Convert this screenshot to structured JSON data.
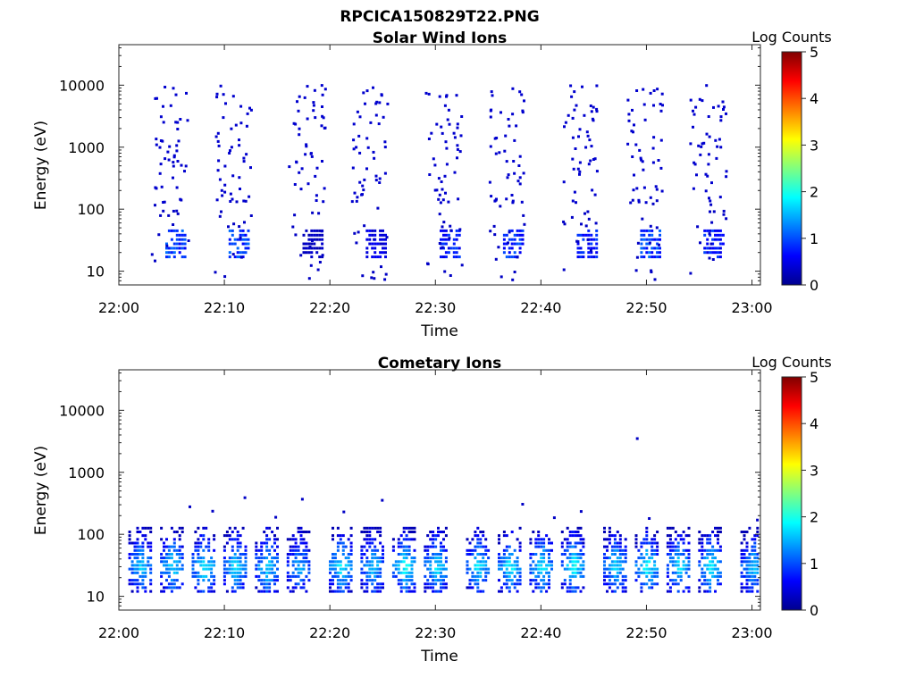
{
  "figure": {
    "title": "RPCICA150829T22.PNG"
  },
  "chart_data": [
    {
      "type": "heatmap",
      "title": "Solar Wind Ions",
      "xlabel": "Time",
      "ylabel": "Energy (eV)",
      "x_ticks": [
        "22:00",
        "22:10",
        "22:20",
        "22:30",
        "22:40",
        "22:50",
        "23:00"
      ],
      "y_ticks": [
        "10",
        "100",
        "1000",
        "10000"
      ],
      "y_scale": "log",
      "ylim": [
        6,
        45000
      ],
      "xlim": [
        "22:00",
        "23:00"
      ],
      "colorbar": {
        "label": "Log Counts",
        "range": [
          0,
          5
        ],
        "ticks": [
          "0",
          "1",
          "2",
          "3",
          "4",
          "5"
        ]
      },
      "bursts": [
        {
          "time": "22:05",
          "low_band_level": 1.0,
          "high_energy_scatter": true
        },
        {
          "time": "22:11",
          "low_band_level": 1.0,
          "high_energy_scatter": true
        },
        {
          "time": "22:18",
          "low_band_level": 0.3,
          "high_energy_scatter": true
        },
        {
          "time": "22:24",
          "low_band_level": 0.5,
          "high_energy_scatter": true
        },
        {
          "time": "22:31",
          "low_band_level": 0.8,
          "high_energy_scatter": true
        },
        {
          "time": "22:37",
          "low_band_level": 0.9,
          "high_energy_scatter": true
        },
        {
          "time": "22:44",
          "low_band_level": 0.8,
          "high_energy_scatter": true
        },
        {
          "time": "22:50",
          "low_band_level": 1.0,
          "high_energy_scatter": true
        },
        {
          "time": "22:56",
          "low_band_level": 0.8,
          "high_energy_scatter": true
        }
      ]
    },
    {
      "type": "heatmap",
      "title": "Cometary Ions",
      "xlabel": "Time",
      "ylabel": "Energy (eV)",
      "x_ticks": [
        "22:00",
        "22:10",
        "22:20",
        "22:30",
        "22:40",
        "22:50",
        "23:00"
      ],
      "y_ticks": [
        "10",
        "100",
        "1000",
        "10000"
      ],
      "y_scale": "log",
      "ylim": [
        6,
        45000
      ],
      "xlim": [
        "22:00",
        "23:00"
      ],
      "colorbar": {
        "label": "Log Counts",
        "range": [
          0,
          5
        ],
        "ticks": [
          "0",
          "1",
          "2",
          "3",
          "4",
          "5"
        ]
      },
      "energy_band": [
        12,
        130
      ],
      "peak_energy": 30,
      "peak_level": 2.0,
      "bursts": [
        {
          "time": "22:02",
          "level": 1.7
        },
        {
          "time": "22:05",
          "level": 1.8
        },
        {
          "time": "22:08",
          "level": 1.9
        },
        {
          "time": "22:11",
          "level": 1.8
        },
        {
          "time": "22:14",
          "level": 1.8
        },
        {
          "time": "22:17",
          "level": 1.5
        },
        {
          "time": "22:21",
          "level": 1.9
        },
        {
          "time": "22:24",
          "level": 1.7
        },
        {
          "time": "22:27",
          "level": 2.0
        },
        {
          "time": "22:30",
          "level": 1.9
        },
        {
          "time": "22:34",
          "level": 1.8
        },
        {
          "time": "22:37",
          "level": 1.9
        },
        {
          "time": "22:40",
          "level": 1.9
        },
        {
          "time": "22:43",
          "level": 2.0
        },
        {
          "time": "22:47",
          "level": 1.8
        },
        {
          "time": "22:50",
          "level": 2.0
        },
        {
          "time": "22:53",
          "level": 1.8
        },
        {
          "time": "22:56",
          "level": 1.9
        },
        {
          "time": "23:00",
          "level": 1.7
        }
      ]
    }
  ],
  "colors": {
    "colormap": [
      "#00008f",
      "#0000ff",
      "#00ffff",
      "#ffff00",
      "#ff0000",
      "#800000"
    ]
  }
}
